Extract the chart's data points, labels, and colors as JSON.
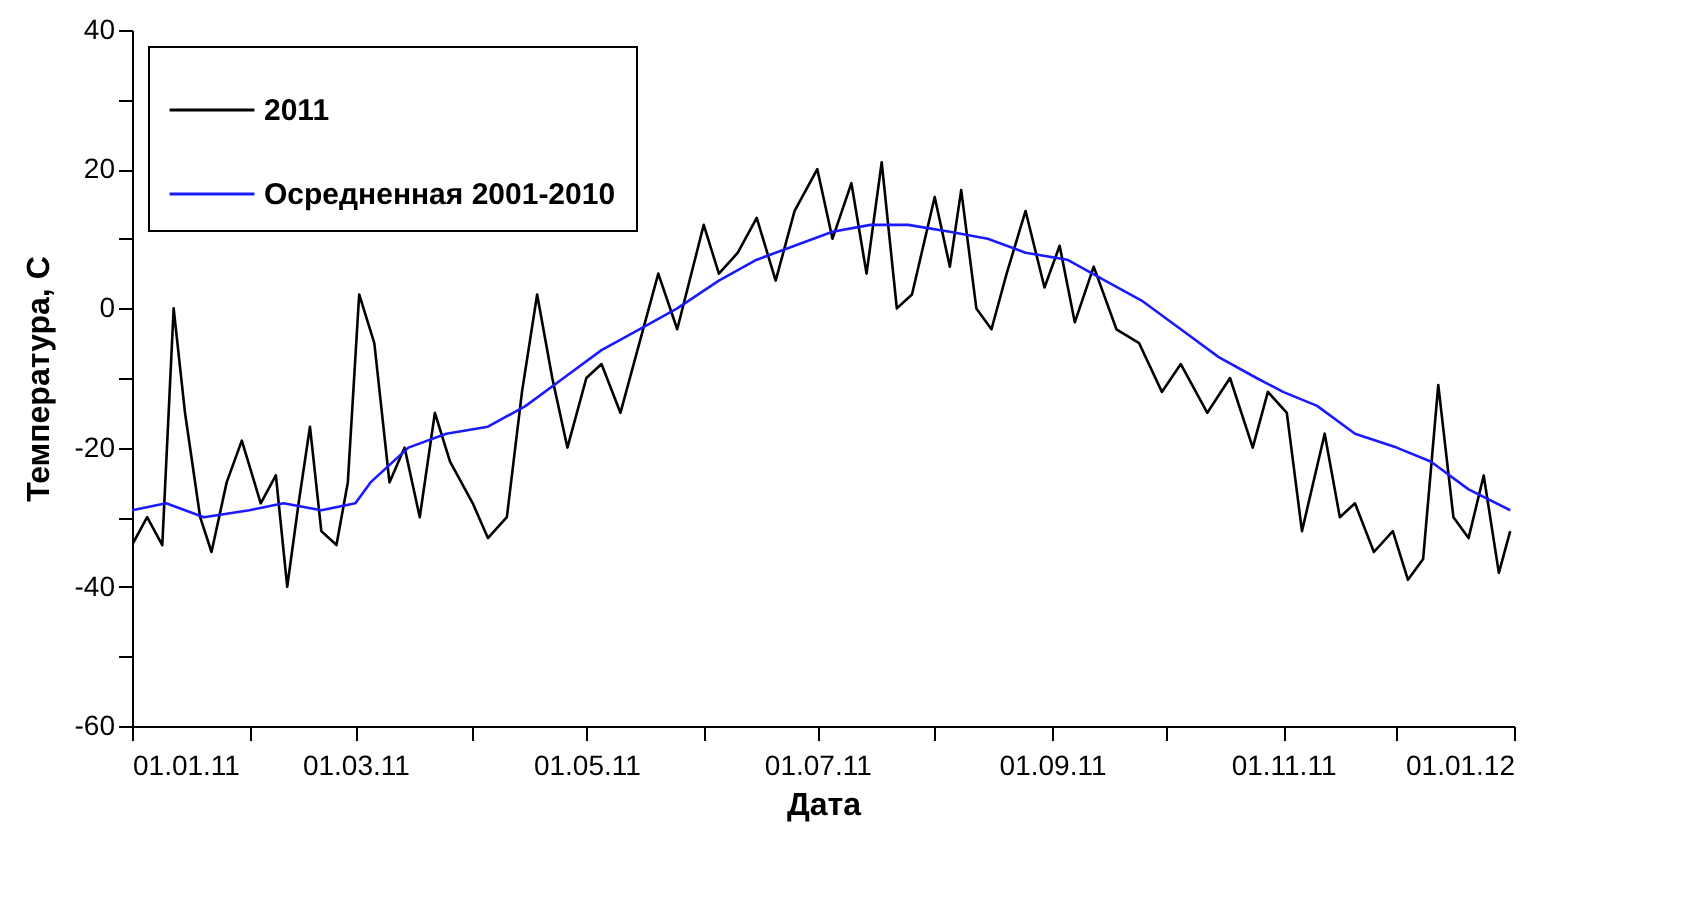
{
  "chart_data": {
    "type": "line",
    "xlabel": "Дата",
    "ylabel": "Температура, С",
    "legend": "top left",
    "grid": false,
    "marker": "none",
    "line_style": "solid",
    "xlim": [
      "2011-01-01",
      "2012-01-01"
    ],
    "ylim": [
      -60,
      40
    ],
    "xticks": [
      {
        "value": "2011-01-01",
        "label": "01.01.11"
      },
      {
        "value": "2011-02-01",
        "label": null
      },
      {
        "value": "2011-03-01",
        "label": "01.03.11"
      },
      {
        "value": "2011-04-01",
        "label": null
      },
      {
        "value": "2011-05-01",
        "label": "01.05.11"
      },
      {
        "value": "2011-06-01",
        "label": null
      },
      {
        "value": "2011-07-01",
        "label": "01.07.11"
      },
      {
        "value": "2011-08-01",
        "label": null
      },
      {
        "value": "2011-09-01",
        "label": "01.09.11"
      },
      {
        "value": "2011-10-01",
        "label": null
      },
      {
        "value": "2011-11-01",
        "label": "01.11.11"
      },
      {
        "value": "2011-12-01",
        "label": null
      },
      {
        "value": "2012-01-01",
        "label": "01.01.12"
      }
    ],
    "yticks": [
      -60,
      {
        "value": -50,
        "label": null
      },
      -40,
      {
        "value": -30,
        "label": null
      },
      -20,
      {
        "value": -10,
        "label": null
      },
      0,
      {
        "value": 10,
        "label": null
      },
      20,
      {
        "value": 30,
        "label": null
      },
      40
    ],
    "series": [
      {
        "name": "2011",
        "color": "#000000",
        "x": [
          "2011-01-01",
          "2011-01-05",
          "2011-01-09",
          "2011-01-12",
          "2011-01-15",
          "2011-01-19",
          "2011-01-22",
          "2011-01-26",
          "2011-01-30",
          "2011-02-04",
          "2011-02-08",
          "2011-02-11",
          "2011-02-14",
          "2011-02-17",
          "2011-02-20",
          "2011-02-24",
          "2011-02-27",
          "2011-03-02",
          "2011-03-06",
          "2011-03-10",
          "2011-03-14",
          "2011-03-18",
          "2011-03-22",
          "2011-03-26",
          "2011-04-01",
          "2011-04-05",
          "2011-04-10",
          "2011-04-14",
          "2011-04-18",
          "2011-04-22",
          "2011-04-26",
          "2011-05-01",
          "2011-05-05",
          "2011-05-10",
          "2011-05-15",
          "2011-05-20",
          "2011-05-25",
          "2011-06-01",
          "2011-06-05",
          "2011-06-10",
          "2011-06-15",
          "2011-06-20",
          "2011-06-25",
          "2011-07-01",
          "2011-07-05",
          "2011-07-10",
          "2011-07-14",
          "2011-07-18",
          "2011-07-22",
          "2011-07-26",
          "2011-08-01",
          "2011-08-05",
          "2011-08-08",
          "2011-08-12",
          "2011-08-16",
          "2011-08-20",
          "2011-08-25",
          "2011-08-30",
          "2011-09-03",
          "2011-09-07",
          "2011-09-12",
          "2011-09-18",
          "2011-09-24",
          "2011-09-30",
          "2011-10-05",
          "2011-10-12",
          "2011-10-18",
          "2011-10-24",
          "2011-10-28",
          "2011-11-02",
          "2011-11-06",
          "2011-11-12",
          "2011-11-16",
          "2011-11-20",
          "2011-11-25",
          "2011-11-30",
          "2011-12-04",
          "2011-12-08",
          "2011-12-12",
          "2011-12-16",
          "2011-12-20",
          "2011-12-24",
          "2011-12-28",
          "2011-12-31"
        ],
        "values": [
          -34,
          -30,
          -34,
          0,
          -15,
          -30,
          -35,
          -25,
          -19,
          -28,
          -24,
          -40,
          -28,
          -17,
          -32,
          -34,
          -25,
          2,
          -5,
          -25,
          -20,
          -30,
          -15,
          -22,
          -28,
          -33,
          -30,
          -12,
          2,
          -10,
          -20,
          -10,
          -8,
          -15,
          -5,
          5,
          -3,
          12,
          5,
          8,
          13,
          4,
          14,
          20,
          10,
          18,
          5,
          21,
          0,
          2,
          16,
          6,
          17,
          0,
          -3,
          5,
          14,
          3,
          9,
          -2,
          6,
          -3,
          -5,
          -12,
          -8,
          -15,
          -10,
          -20,
          -12,
          -15,
          -32,
          -18,
          -30,
          -28,
          -35,
          -32,
          -39,
          -36,
          -11,
          -30,
          -33,
          -24,
          -38,
          -32
        ]
      },
      {
        "name": "Осредненная 2001-2010",
        "color": "#1a1aff",
        "x": [
          "2011-01-01",
          "2011-01-10",
          "2011-01-20",
          "2011-02-01",
          "2011-02-10",
          "2011-02-20",
          "2011-03-01",
          "2011-03-05",
          "2011-03-15",
          "2011-03-25",
          "2011-04-05",
          "2011-04-15",
          "2011-04-25",
          "2011-05-05",
          "2011-05-15",
          "2011-05-25",
          "2011-06-05",
          "2011-06-15",
          "2011-06-25",
          "2011-07-05",
          "2011-07-15",
          "2011-07-25",
          "2011-08-05",
          "2011-08-15",
          "2011-08-25",
          "2011-09-05",
          "2011-09-15",
          "2011-09-25",
          "2011-10-05",
          "2011-10-15",
          "2011-10-25",
          "2011-11-01",
          "2011-11-10",
          "2011-11-20",
          "2011-12-01",
          "2011-12-10",
          "2011-12-20",
          "2011-12-31"
        ],
        "values": [
          -29,
          -28,
          -30,
          -29,
          -28,
          -29,
          -28,
          -25,
          -20,
          -18,
          -17,
          -14,
          -10,
          -6,
          -3,
          0,
          4,
          7,
          9,
          11,
          12,
          12,
          11,
          10,
          8,
          7,
          4,
          1,
          -3,
          -7,
          -10,
          -12,
          -14,
          -18,
          -20,
          -22,
          -26,
          -29
        ]
      }
    ]
  }
}
